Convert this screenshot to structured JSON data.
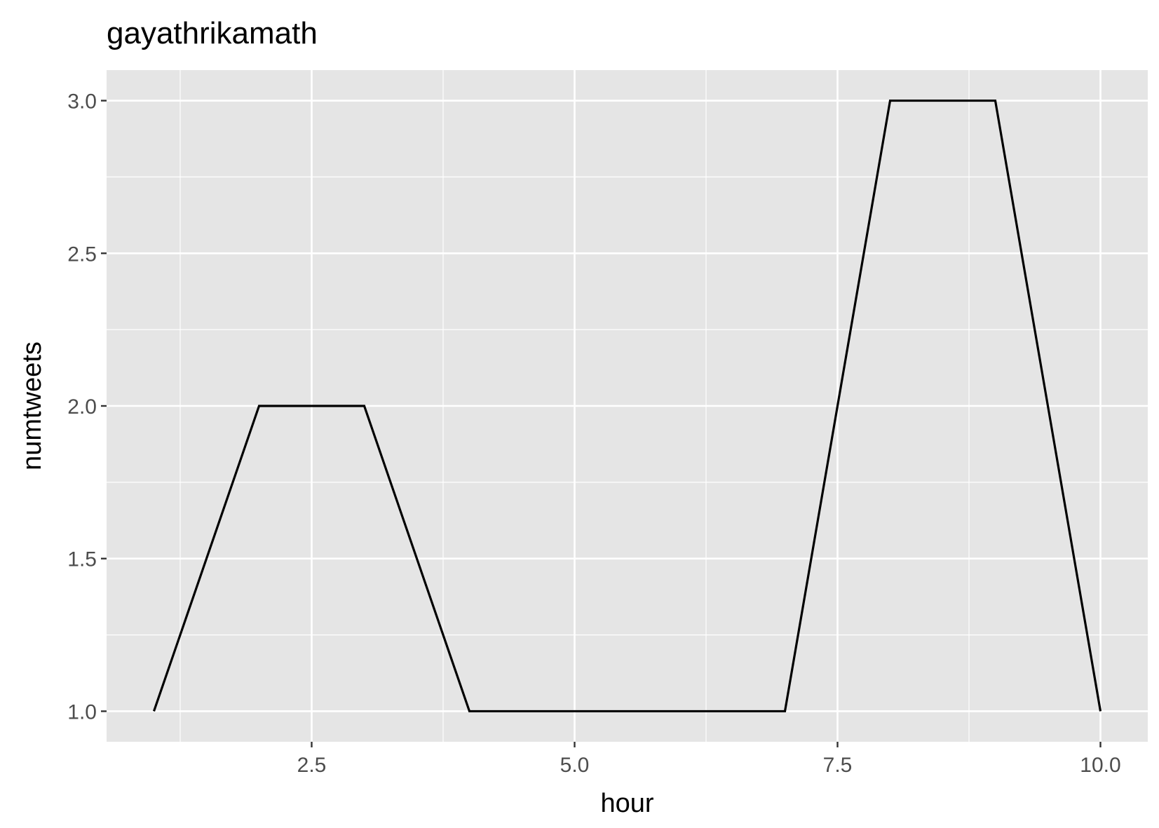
{
  "chart_data": {
    "type": "line",
    "title": "gayathrikamath",
    "xlabel": "hour",
    "ylabel": "numtweets",
    "x": [
      1,
      2,
      3,
      4,
      5,
      6,
      7,
      8,
      9,
      10
    ],
    "series": [
      {
        "values": [
          1,
          2,
          2,
          1,
          1,
          1,
          1,
          3,
          3,
          1
        ]
      }
    ],
    "xlim": [
      0.55,
      10.45
    ],
    "ylim": [
      0.9,
      3.1
    ],
    "x_ticks": [
      2.5,
      5.0,
      7.5,
      10.0
    ],
    "x_tick_labels": [
      "2.5",
      "5.0",
      "7.5",
      "10.0"
    ],
    "y_ticks": [
      1.0,
      1.5,
      2.0,
      2.5,
      3.0
    ],
    "y_tick_labels": [
      "1.0",
      "1.5",
      "2.0",
      "2.5",
      "3.0"
    ],
    "grid": true,
    "legend": "none",
    "colors": {
      "panel_background": "#e5e5e5",
      "grid": "#ffffff",
      "line": "#000000",
      "tick_text": "#4d4d4d",
      "tick_mark": "#333333"
    }
  }
}
